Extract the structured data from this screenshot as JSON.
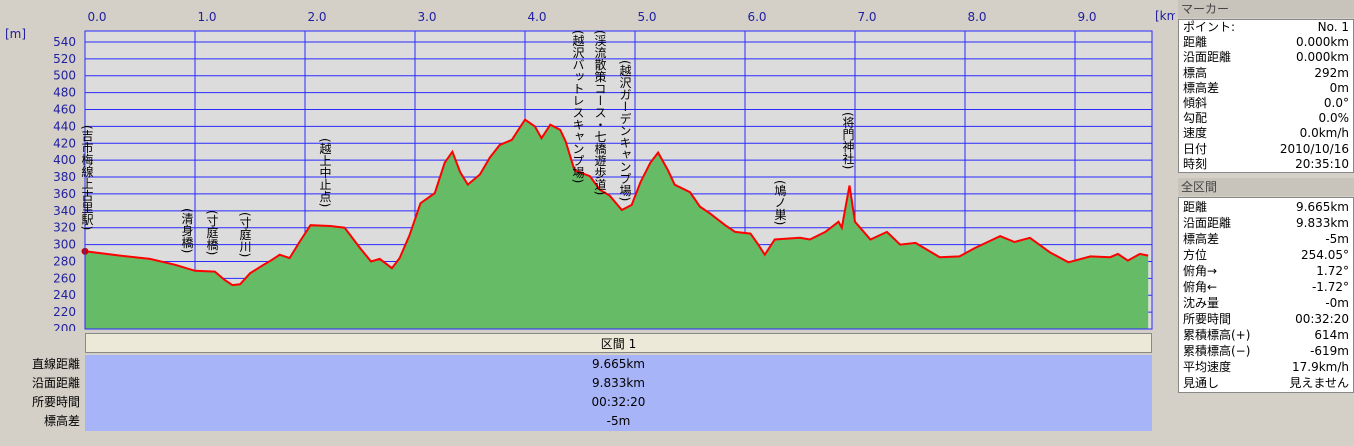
{
  "chart_data": {
    "type": "area",
    "x_unit": "[km]",
    "y_unit": "[m]",
    "x": [
      0,
      0.32,
      0.59,
      0.82,
      1.0,
      1.18,
      1.27,
      1.34,
      1.41,
      1.5,
      1.61,
      1.7,
      1.77,
      1.86,
      1.95,
      2.05,
      2.23,
      2.36,
      2.5,
      2.6,
      2.68,
      2.79,
      2.86,
      2.95,
      3.05,
      3.18,
      3.27,
      3.34,
      3.41,
      3.48,
      3.59,
      3.68,
      3.77,
      3.88,
      4.0,
      4.09,
      4.15,
      4.23,
      4.32,
      4.37,
      4.45,
      4.59,
      4.68,
      4.77,
      4.88,
      4.97,
      5.05,
      5.14,
      5.21,
      5.3,
      5.36,
      5.5,
      5.59,
      5.68,
      5.82,
      5.91,
      6.05,
      6.12,
      6.18,
      6.27,
      6.5,
      6.59,
      6.73,
      6.85,
      6.88,
      6.95,
      7.0,
      7.14,
      7.29,
      7.41,
      7.55,
      7.77,
      7.95,
      8.09,
      8.32,
      8.45,
      8.59,
      8.77,
      8.94,
      9.14,
      9.32,
      9.39,
      9.48,
      9.59,
      9.665
    ],
    "values": [
      292,
      287,
      283,
      276,
      269,
      268,
      258,
      252,
      253,
      266,
      275,
      282,
      288,
      284,
      303,
      323,
      322,
      320,
      296,
      280,
      283,
      272,
      284,
      311,
      349,
      361,
      397,
      410,
      386,
      371,
      383,
      403,
      418,
      424,
      448,
      440,
      426,
      442,
      436,
      422,
      388,
      381,
      365,
      358,
      341,
      347,
      374,
      397,
      409,
      388,
      371,
      362,
      345,
      337,
      323,
      315,
      313,
      300,
      288,
      306,
      308,
      306,
      315,
      327,
      320,
      370,
      327,
      306,
      315,
      300,
      302,
      285,
      286,
      296,
      310,
      303,
      308,
      291,
      279,
      286,
      285,
      289,
      281,
      289,
      287
    ],
    "line_color": "#ff0000",
    "fill_color": "#66bb66",
    "xlim": [
      0,
      9.7
    ],
    "ylim": [
      200,
      553
    ],
    "xticks": [
      {
        "value": 0,
        "label": "0.0"
      },
      {
        "value": 1,
        "label": "1.0"
      },
      {
        "value": 2,
        "label": "2.0"
      },
      {
        "value": 3,
        "label": "3.0"
      },
      {
        "value": 4,
        "label": "4.0"
      },
      {
        "value": 5,
        "label": "5.0"
      },
      {
        "value": 6,
        "label": "6.0"
      },
      {
        "value": 7,
        "label": "7.0"
      },
      {
        "value": 8,
        "label": "8.0"
      },
      {
        "value": 9,
        "label": "9.0"
      }
    ],
    "yticks": [
      200,
      220,
      240,
      260,
      280,
      300,
      320,
      340,
      360,
      380,
      400,
      420,
      440,
      460,
      480,
      500,
      520,
      540
    ],
    "grid": true,
    "annotations": [
      "(吉市梅線上古里駅)",
      "(清身橋)",
      "(寸庭橋)",
      "(寸庭川)",
      "(越上中止点)",
      "(越沢バットレスキャンプ場)",
      "(渓流散策コース・七橋遊歩道)",
      "(越沢ガーデンキャンプ場)",
      "(鳩ノ巣)",
      "(将門神社)"
    ]
  },
  "segment": {
    "title": "区間 1",
    "rows": [
      [
        "直線距離",
        "9.665km"
      ],
      [
        "沿面距離",
        "9.833km"
      ],
      [
        "所要時間",
        "00:32:20"
      ],
      [
        "標高差",
        "-5m"
      ]
    ]
  },
  "marker_panel": {
    "title": "マーカー",
    "rows": [
      [
        "ポイント:",
        "No. 1"
      ],
      [
        "距離",
        "0.000km"
      ],
      [
        "沿面距離",
        "0.000km"
      ],
      [
        "標高",
        "292m"
      ],
      [
        "標高差",
        "0m"
      ],
      [
        "傾斜",
        "0.0°"
      ],
      [
        "勾配",
        "0.0%"
      ],
      [
        "速度",
        "0.0km/h"
      ],
      [
        "日付",
        "2010/10/16"
      ],
      [
        "時刻",
        "20:35:10"
      ]
    ]
  },
  "total_panel": {
    "title": "全区間",
    "rows": [
      [
        "距離",
        "9.665km"
      ],
      [
        "沿面距離",
        "9.833km"
      ],
      [
        "標高差",
        "-5m"
      ],
      [
        "方位",
        "254.05°"
      ],
      [
        "俯角→",
        "1.72°"
      ],
      [
        "俯角←",
        "-1.72°"
      ],
      [
        "沈み量",
        "-0m"
      ],
      [
        "所要時間",
        "00:32:20"
      ],
      [
        "累積標高(+)",
        "614m"
      ],
      [
        "累積標高(−)",
        "-619m"
      ],
      [
        "平均速度",
        "17.9km/h"
      ],
      [
        "見通し",
        "見えません"
      ]
    ]
  }
}
